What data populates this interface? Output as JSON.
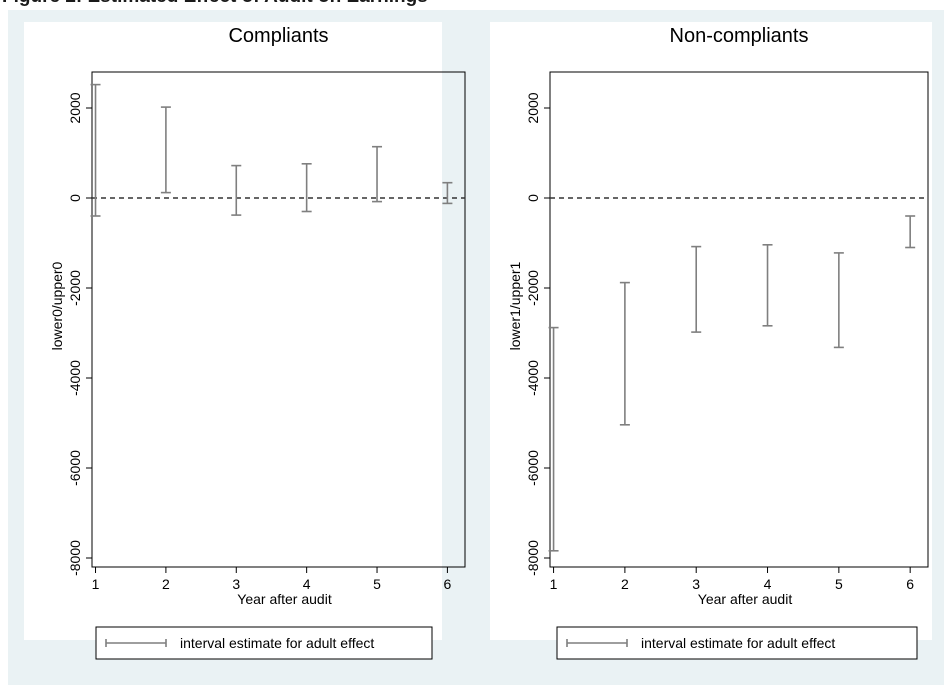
{
  "page": {
    "heading": "Figure 2: Estimated Effect of Audit on Earnings"
  },
  "colors": {
    "figure_background": "#eaf2f4",
    "panel_background": "#ffffff",
    "interval_color": "#7f7f7f",
    "reference_line": "#333333"
  },
  "chart_data": [
    {
      "type": "rangebar",
      "title": "Compliants",
      "xlabel": "Year after audit",
      "ylabel": "lower0/upper0",
      "x": [
        1,
        2,
        3,
        4,
        5,
        6
      ],
      "x_ticks": [
        "1",
        "2",
        "3",
        "4",
        "5",
        "6"
      ],
      "y_ticks": [
        "2000",
        "0",
        "-2000",
        "-4000",
        "-6000",
        "-8000"
      ],
      "y_tick_values": [
        2000,
        0,
        -2000,
        -4000,
        -6000,
        -8000
      ],
      "lower": [
        -400,
        120,
        -380,
        -300,
        -80,
        -120
      ],
      "upper": [
        2520,
        2020,
        720,
        760,
        1140,
        340
      ],
      "ylim": [
        -8200,
        2800
      ],
      "xlim": [
        0.95,
        6.25
      ],
      "reference_line": 0,
      "grid": false,
      "legend": {
        "entries": [
          "interval estimate for adult effect"
        ],
        "placement": "bottom"
      }
    },
    {
      "type": "rangebar",
      "title": "Non-compliants",
      "xlabel": "Year after audit",
      "ylabel": "lower1/upper1",
      "x": [
        1,
        2,
        3,
        4,
        5,
        6
      ],
      "x_ticks": [
        "1",
        "2",
        "3",
        "4",
        "5",
        "6"
      ],
      "y_ticks": [
        "2000",
        "0",
        "-2000",
        "-4000",
        "-6000",
        "-8000"
      ],
      "y_tick_values": [
        2000,
        0,
        -2000,
        -4000,
        -6000,
        -8000
      ],
      "lower": [
        -7840,
        -5040,
        -2980,
        -2840,
        -3320,
        -1100
      ],
      "upper": [
        -2880,
        -1880,
        -1080,
        -1040,
        -1220,
        -400
      ],
      "ylim": [
        -8200,
        2800
      ],
      "xlim": [
        0.95,
        6.25
      ],
      "reference_line": 0,
      "grid": false,
      "legend": {
        "entries": [
          "interval estimate for adult effect"
        ],
        "placement": "bottom"
      }
    }
  ]
}
